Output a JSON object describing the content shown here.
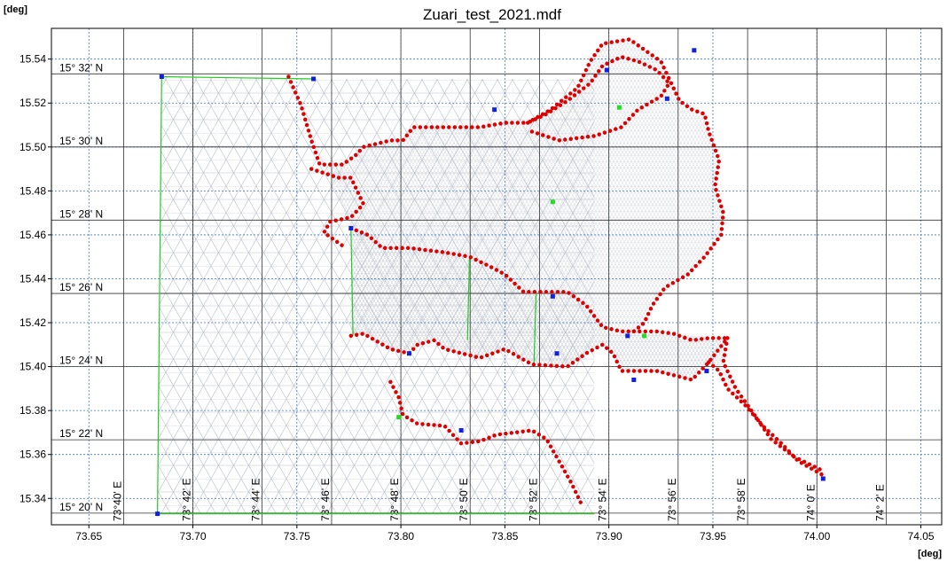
{
  "chart_data": {
    "type": "map",
    "title": "Zuari_test_2021.mdf",
    "x_label": "[deg]",
    "y_label": "[deg]",
    "xlim": [
      73.632,
      74.06
    ],
    "ylim": [
      15.328,
      15.554
    ],
    "xticks": [
      73.65,
      {
        "value": 73.7,
        "label": "73.70"
      },
      73.75,
      {
        "value": 73.8,
        "label": "73.80"
      },
      73.85,
      {
        "value": 73.9,
        "label": "73.90"
      },
      73.95,
      {
        "value": 74.0,
        "label": "74.00"
      },
      74.05
    ],
    "yticks": [
      15.34,
      15.36,
      15.38,
      {
        "value": 15.4,
        "label": "15.40"
      },
      15.42,
      15.44,
      15.46,
      15.48,
      {
        "value": 15.5,
        "label": "15.50"
      },
      15.52,
      15.54
    ],
    "grid": true,
    "dms_x": [
      {
        "value": 73.6667,
        "label": "73°40' E"
      },
      {
        "value": 73.7,
        "label": "73° 42' E"
      },
      {
        "value": 73.7333,
        "label": "73° 44' E"
      },
      {
        "value": 73.7667,
        "label": "73° 46' E"
      },
      {
        "value": 73.8,
        "label": "73° 48' E"
      },
      {
        "value": 73.8333,
        "label": "73° 50' E"
      },
      {
        "value": 73.8667,
        "label": "73° 52' E"
      },
      {
        "value": 73.9,
        "label": "73° 54' E"
      },
      {
        "value": 73.9333,
        "label": "73° 56' E"
      },
      {
        "value": 73.9667,
        "label": "73° 58' E"
      },
      {
        "value": 74.0,
        "label": "74° 0' E"
      },
      {
        "value": 74.0333,
        "label": "74° 2' E"
      }
    ],
    "dms_y": [
      {
        "value": 15.3333,
        "label": "15° 20' N"
      },
      {
        "value": 15.3667,
        "label": "15° 22' N"
      },
      {
        "value": 15.4,
        "label": "15° 24' N"
      },
      {
        "value": 15.4333,
        "label": "15° 26' N"
      },
      {
        "value": 15.4667,
        "label": "15° 28' N"
      },
      {
        "value": 15.5,
        "label": "15° 30' N"
      },
      {
        "value": 15.5333,
        "label": "15° 32' N"
      }
    ],
    "boundary_color": "#e00000",
    "open_boundary_color": "#22cc22",
    "boundaries": [
      {
        "x": [
          73.746,
          73.752,
          73.757,
          73.761,
          73.772,
          73.778,
          73.782,
          73.795,
          73.801,
          73.806,
          73.821,
          73.838,
          73.85,
          73.861
        ],
        "y": [
          15.532,
          15.519,
          15.503,
          15.492,
          15.492,
          15.496,
          15.5,
          15.503,
          15.503,
          15.509,
          15.509,
          15.509,
          15.511,
          15.511
        ]
      },
      {
        "x": [
          73.757,
          73.77,
          73.776,
          73.782,
          73.776,
          73.766,
          73.763,
          73.772
        ],
        "y": [
          15.49,
          15.486,
          15.486,
          15.474,
          15.468,
          15.466,
          15.461,
          15.455
        ]
      },
      {
        "x": [
          73.861,
          73.872,
          73.885,
          73.891,
          73.897,
          73.91,
          73.919,
          73.925,
          73.931,
          73.934,
          73.94,
          73.946,
          73.948,
          73.953,
          73.951,
          73.955,
          73.954,
          73.946,
          73.938,
          73.927,
          73.921,
          73.917,
          73.912
        ],
        "y": [
          15.511,
          15.517,
          15.527,
          15.539,
          15.547,
          15.549,
          15.543,
          15.539,
          15.527,
          15.521,
          15.517,
          15.515,
          15.507,
          15.494,
          15.482,
          15.47,
          15.46,
          15.45,
          15.442,
          15.436,
          15.428,
          15.42,
          15.416
        ]
      },
      {
        "x": [
          73.863,
          73.876,
          73.893,
          73.906,
          73.914,
          73.925,
          73.929,
          73.923,
          73.914,
          73.906,
          73.897,
          73.891,
          73.88,
          73.87,
          73.861
        ],
        "y": [
          15.507,
          15.503,
          15.505,
          15.509,
          15.517,
          15.523,
          15.529,
          15.535,
          15.539,
          15.541,
          15.537,
          15.529,
          15.521,
          15.515,
          15.511
        ]
      },
      {
        "x": [
          73.776,
          73.784,
          73.791,
          73.804,
          73.821,
          73.833,
          73.842,
          73.85,
          73.859,
          73.872,
          73.88,
          73.889,
          73.897,
          73.906,
          73.912
        ],
        "y": [
          15.463,
          15.46,
          15.454,
          15.454,
          15.452,
          15.45,
          15.446,
          15.442,
          15.434,
          15.434,
          15.434,
          15.428,
          15.418,
          15.416,
          15.416
        ]
      },
      {
        "x": [
          73.776,
          73.782,
          73.795,
          73.804,
          73.808,
          73.816,
          73.821,
          73.838,
          73.85,
          73.863,
          73.88,
          73.889,
          73.897,
          73.902,
          73.906,
          73.923,
          73.94,
          73.948,
          73.957
        ],
        "y": [
          15.414,
          15.415,
          15.408,
          15.406,
          15.41,
          15.412,
          15.408,
          15.404,
          15.408,
          15.401,
          15.4,
          15.406,
          15.41,
          15.406,
          15.398,
          15.398,
          15.394,
          15.402,
          15.413
        ]
      },
      {
        "x": [
          73.912,
          73.923,
          73.931,
          73.94,
          73.948,
          73.957
        ],
        "y": [
          15.416,
          15.416,
          15.415,
          15.412,
          15.413,
          15.413
        ]
      },
      {
        "x": [
          73.948,
          73.953,
          73.957,
          73.966,
          73.974,
          73.983,
          73.991,
          74.004
        ],
        "y": [
          15.402,
          15.398,
          15.39,
          15.382,
          15.373,
          15.365,
          15.357,
          15.35
        ]
      },
      {
        "x": [
          73.957,
          73.955,
          73.961,
          73.97,
          73.978,
          73.989,
          74.002
        ],
        "y": [
          15.413,
          15.402,
          15.39,
          15.378,
          15.367,
          15.359,
          15.353
        ]
      },
      {
        "x": [
          73.795,
          73.799,
          73.801,
          73.808,
          73.821,
          73.829,
          73.838,
          73.846,
          73.855,
          73.863,
          73.87,
          73.876,
          73.882,
          73.887
        ],
        "y": [
          15.393,
          15.386,
          15.378,
          15.374,
          15.373,
          15.365,
          15.366,
          15.369,
          15.37,
          15.371,
          15.367,
          15.357,
          15.347,
          15.337
        ]
      }
    ],
    "open_boundaries": [
      {
        "x": [
          73.758,
          73.685,
          73.683,
          73.893
        ],
        "y": [
          15.531,
          15.532,
          15.333,
          15.333
        ]
      },
      {
        "x": [
          73.776,
          73.777
        ],
        "y": [
          15.463,
          15.414
        ]
      },
      {
        "x": [
          73.833,
          73.832
        ],
        "y": [
          15.45,
          15.412
        ]
      },
      {
        "x": [
          73.865,
          73.864
        ],
        "y": [
          15.434,
          15.401
        ]
      }
    ],
    "blue_points": {
      "color": "#1020e0",
      "x": [
        73.685,
        73.683,
        73.758,
        73.776,
        73.804,
        73.829,
        73.845,
        73.873,
        73.875,
        73.899,
        73.928,
        73.941,
        73.947,
        74.003,
        73.912,
        73.909
      ],
      "y": [
        15.532,
        15.333,
        15.531,
        15.463,
        15.406,
        15.371,
        15.517,
        15.432,
        15.406,
        15.535,
        15.522,
        15.544,
        15.398,
        15.349,
        15.394,
        15.414
      ]
    },
    "green_points": {
      "color": "#22dd22",
      "x": [
        73.905,
        73.873,
        73.917,
        73.799
      ],
      "y": [
        15.518,
        15.475,
        15.414,
        15.377
      ]
    }
  }
}
